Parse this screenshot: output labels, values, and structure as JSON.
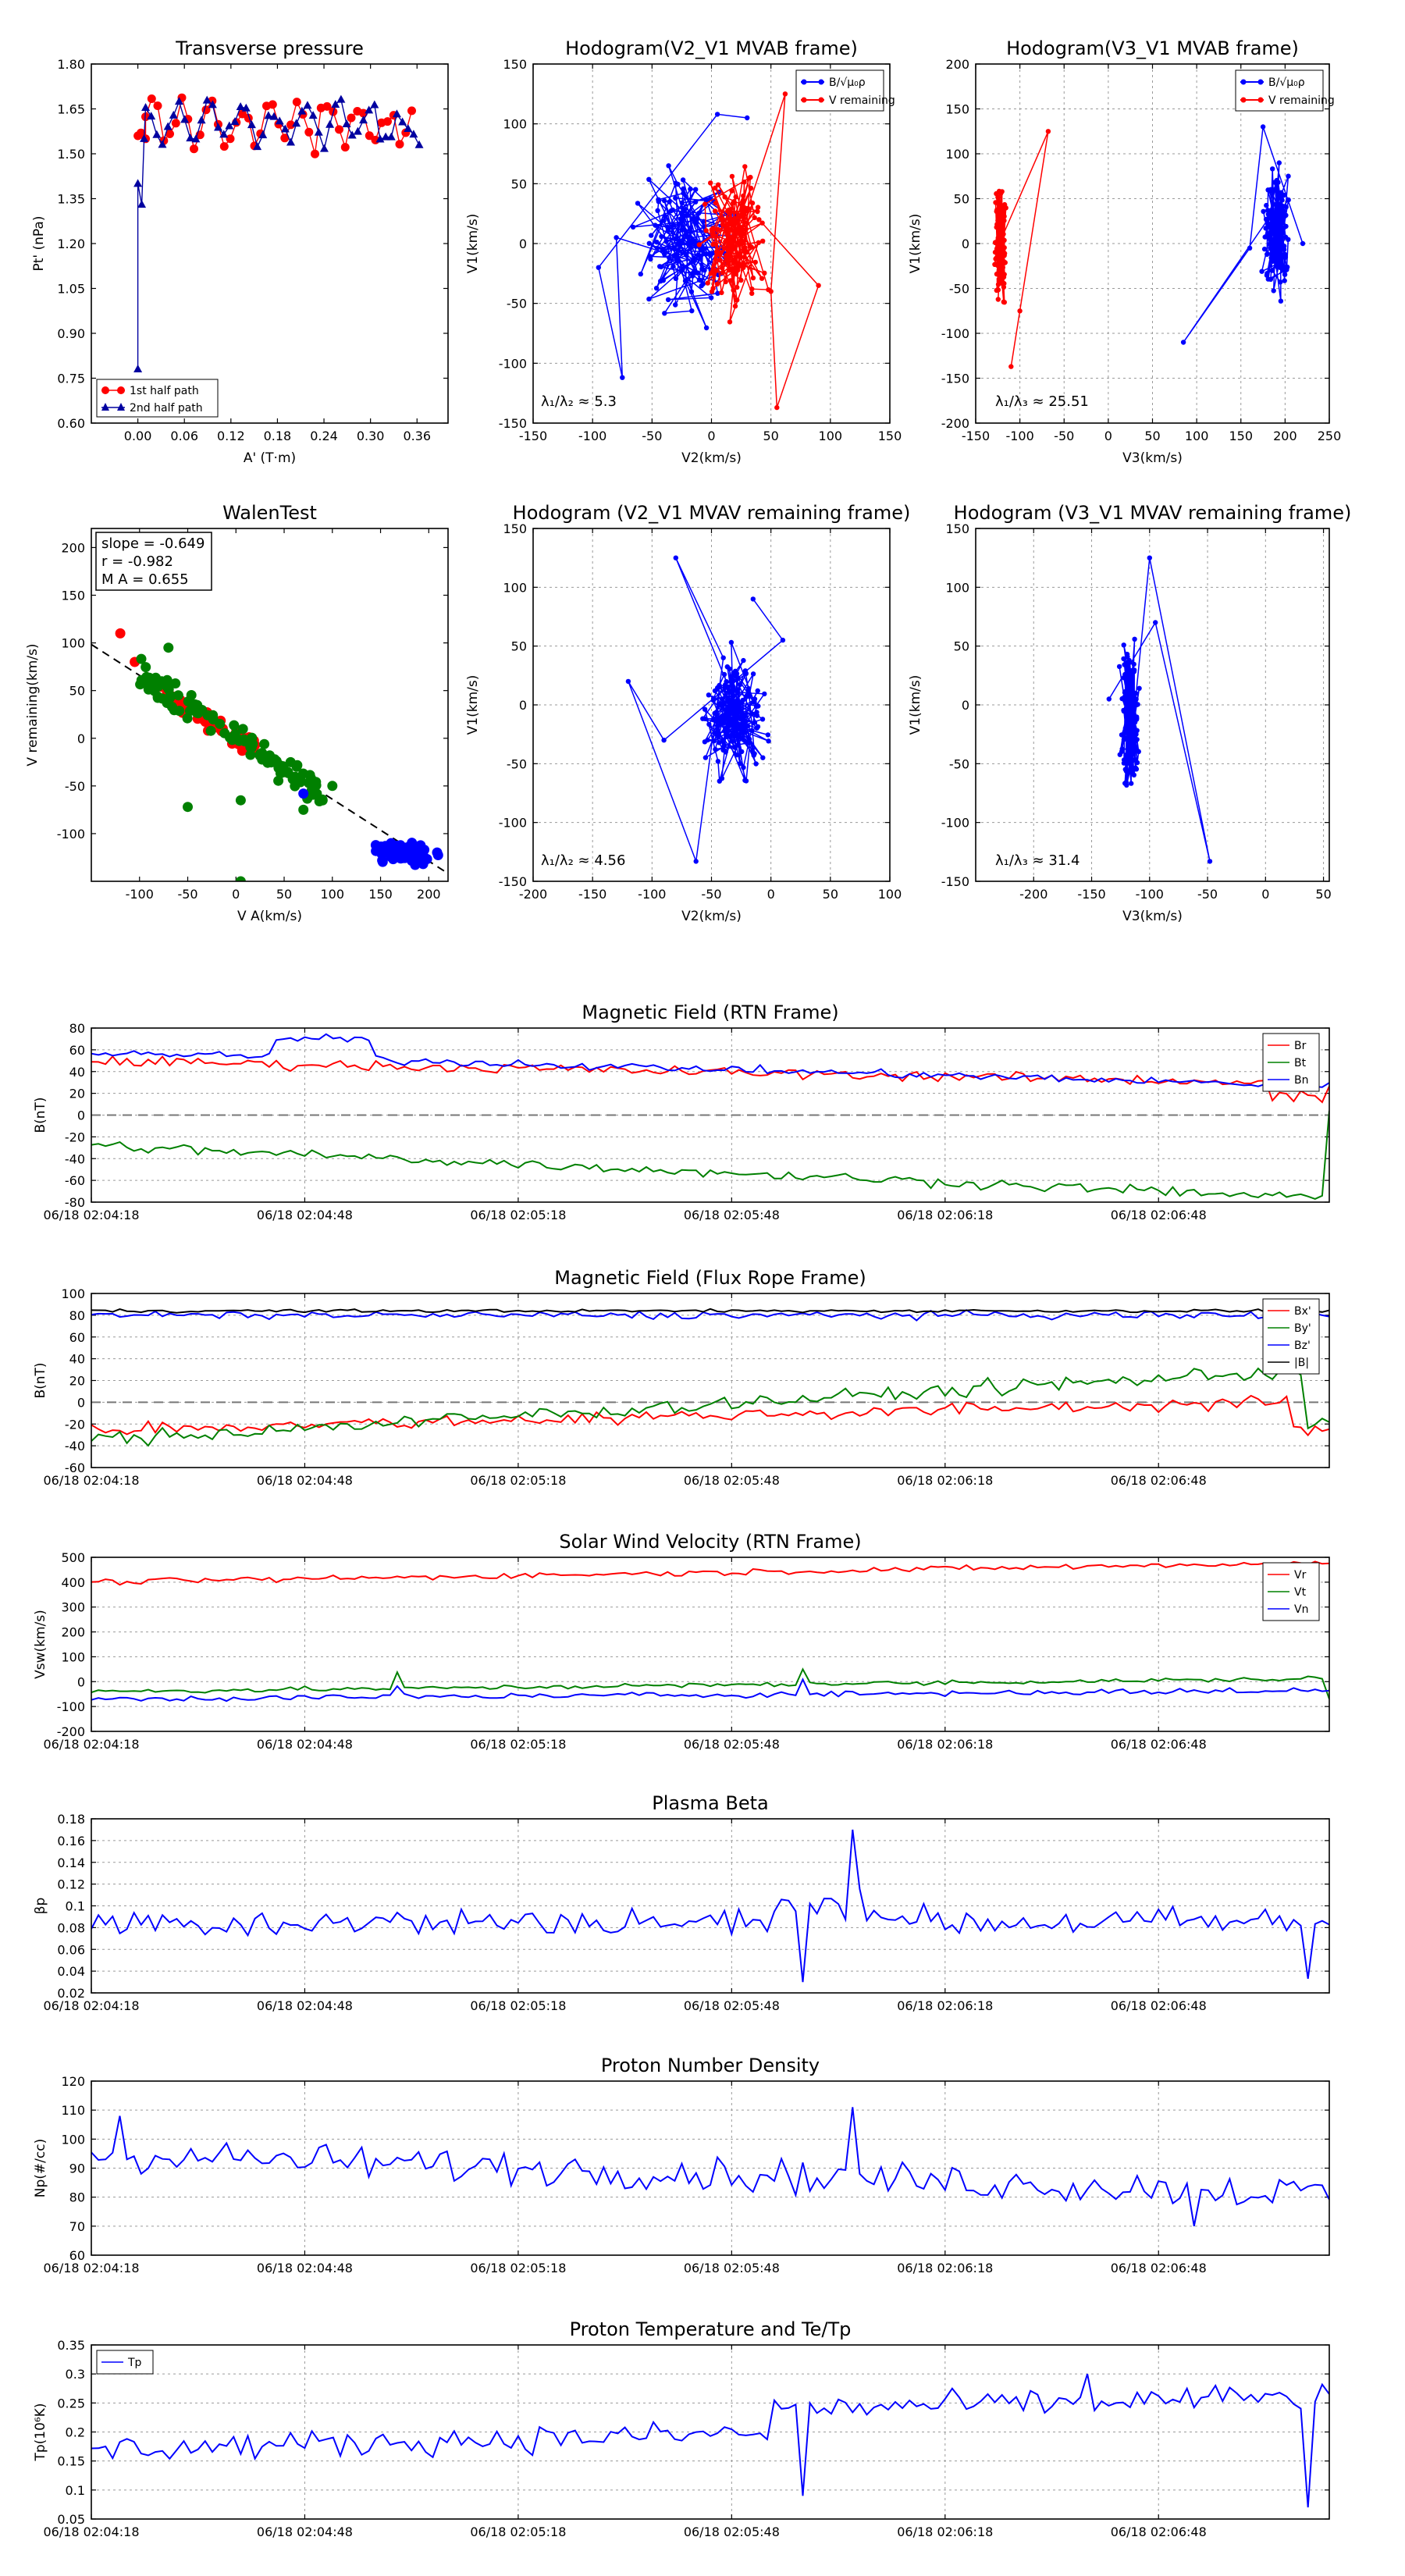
{
  "colors": {
    "red": "#ff0000",
    "blue": "#0000ff",
    "green": "#008000",
    "black": "#000000",
    "navy": "#0000a0"
  },
  "chart_data": [
    {
      "id": "c1",
      "type": "scatter",
      "title": "Transverse pressure",
      "xlabel": "A' (T·m)",
      "ylabel": "Pt' (nPa)",
      "xlim": [
        -0.06,
        0.4
      ],
      "ylim": [
        0.6,
        1.8
      ],
      "xticks": [
        0,
        0.06,
        0.12,
        0.18,
        0.24,
        0.3,
        0.36
      ],
      "xticklabels": [
        "0.00",
        "0.06",
        "0.12",
        "0.18",
        "0.24",
        "0.30",
        "0.36"
      ],
      "yticks": [
        0.6,
        0.75,
        0.9,
        1.05,
        1.2,
        1.35,
        1.5,
        1.65,
        1.8
      ],
      "yticklabels": [
        "0.60",
        "0.75",
        "0.90",
        "1.05",
        "1.20",
        "1.35",
        "1.50",
        "1.65",
        "1.80"
      ],
      "legend": [
        "1st half path",
        "2nd half path"
      ]
    },
    {
      "id": "c2",
      "type": "line",
      "title": "Hodogram(V2_V1 MVAB frame)",
      "xlabel": "V2(km/s)",
      "ylabel": "V1(km/s)",
      "xlim": [
        -150,
        150
      ],
      "ylim": [
        -150,
        150
      ],
      "xticks": [
        -150,
        -100,
        -50,
        0,
        50,
        100,
        150
      ],
      "yticks": [
        -150,
        -100,
        -50,
        0,
        50,
        100,
        150
      ],
      "legend": [
        "B/√μ₀ρ",
        "V remaining"
      ],
      "annotation": "λ₁/λ₂ ≈ 5.3"
    },
    {
      "id": "c3",
      "type": "line",
      "title": "Hodogram(V3_V1 MVAB frame)",
      "xlabel": "V3(km/s)",
      "ylabel": "V1(km/s)",
      "xlim": [
        -150,
        250
      ],
      "ylim": [
        -200,
        200
      ],
      "xticks": [
        -150,
        -100,
        -50,
        0,
        50,
        100,
        150,
        200,
        250
      ],
      "yticks": [
        -200,
        -150,
        -100,
        -50,
        0,
        50,
        100,
        150,
        200
      ],
      "legend": [
        "B/√μ₀ρ",
        "V remaining"
      ],
      "annotation": "λ₁/λ₃ ≈ 25.51"
    },
    {
      "id": "c4",
      "type": "scatter",
      "title": "WalenTest",
      "xlabel": "V A(km/s)",
      "ylabel": "V remaining(km/s)",
      "xlim": [
        -150,
        220
      ],
      "ylim": [
        -150,
        220
      ],
      "xticks": [
        -100,
        -50,
        0,
        50,
        100,
        150,
        200
      ],
      "yticks": [
        -100,
        -50,
        0,
        50,
        100,
        150,
        200
      ],
      "annotations": [
        "slope = -0.649",
        "r = -0.982",
        "M A = 0.655"
      ],
      "slope": -0.649,
      "intercept": 1
    },
    {
      "id": "c5",
      "type": "line",
      "title": "Hodogram (V2_V1 MVAV remaining frame)",
      "xlabel": "V2(km/s)",
      "ylabel": "V1(km/s)",
      "xlim": [
        -200,
        100
      ],
      "ylim": [
        -150,
        150
      ],
      "xticks": [
        -200,
        -150,
        -100,
        -50,
        0,
        50,
        100
      ],
      "yticks": [
        -150,
        -100,
        -50,
        0,
        50,
        100,
        150
      ],
      "annotation": "λ₁/λ₂ ≈ 4.56"
    },
    {
      "id": "c6",
      "type": "line",
      "title": "Hodogram (V3_V1 MVAV remaining frame)",
      "xlabel": "V3(km/s)",
      "ylabel": "V1(km/s)",
      "xlim": [
        -250,
        55
      ],
      "ylim": [
        -150,
        150
      ],
      "xticks": [
        -200,
        -150,
        -100,
        -50,
        0,
        50
      ],
      "yticks": [
        -150,
        -100,
        -50,
        0,
        50,
        100,
        150
      ],
      "annotation": "λ₁/λ₃ ≈ 31.4"
    },
    {
      "id": "t1",
      "type": "line",
      "title": "Magnetic Field (RTN Frame)",
      "ylabel": "B(nT)",
      "ylim": [
        -80,
        80
      ],
      "yticks": [
        -80,
        -60,
        -40,
        -20,
        0,
        20,
        40,
        60,
        80
      ],
      "xticklabels": [
        "06/18 02:04:18",
        "06/18 02:04:48",
        "06/18 02:05:18",
        "06/18 02:05:48",
        "06/18 02:06:18",
        "06/18 02:06:48"
      ],
      "series": [
        {
          "name": "Br",
          "color": "#ff0000",
          "base": 50
        },
        {
          "name": "Bt",
          "color": "#008000",
          "base": -50
        },
        {
          "name": "Bn",
          "color": "#0000ff",
          "base": 50
        }
      ],
      "zero_line": true
    },
    {
      "id": "t2",
      "type": "line",
      "title": "Magnetic Field (Flux Rope Frame)",
      "ylabel": "B(nT)",
      "ylim": [
        -60,
        100
      ],
      "yticks": [
        -60,
        -40,
        -20,
        0,
        20,
        40,
        60,
        80,
        100
      ],
      "xticklabels": [
        "06/18 02:04:18",
        "06/18 02:04:48",
        "06/18 02:05:18",
        "06/18 02:05:48",
        "06/18 02:06:18",
        "06/18 02:06:48"
      ],
      "series": [
        {
          "name": "Bx'",
          "color": "#ff0000"
        },
        {
          "name": "By'",
          "color": "#008000"
        },
        {
          "name": "Bz'",
          "color": "#0000ff"
        },
        {
          "name": "|B|",
          "color": "#000000"
        }
      ],
      "zero_line": true
    },
    {
      "id": "t3",
      "type": "line",
      "title": "Solar Wind Velocity (RTN Frame)",
      "ylabel": "Vsw(km/s)",
      "ylim": [
        -200,
        500
      ],
      "yticks": [
        -200,
        -100,
        0,
        100,
        200,
        300,
        400,
        500
      ],
      "xticklabels": [
        "06/18 02:04:18",
        "06/18 02:04:48",
        "06/18 02:05:18",
        "06/18 02:05:48",
        "06/18 02:06:18",
        "06/18 02:06:48"
      ],
      "series": [
        {
          "name": "Vr",
          "color": "#ff0000"
        },
        {
          "name": "Vt",
          "color": "#008000"
        },
        {
          "name": "Vn",
          "color": "#0000ff"
        }
      ]
    },
    {
      "id": "t4",
      "type": "line",
      "title": "Plasma Beta",
      "ylabel": "βp",
      "ylim": [
        0.02,
        0.18
      ],
      "yticks": [
        0.02,
        0.04,
        0.06,
        0.08,
        0.1,
        0.12,
        0.14,
        0.16,
        0.18
      ],
      "xticklabels": [
        "06/18 02:04:18",
        "06/18 02:04:48",
        "06/18 02:05:18",
        "06/18 02:05:48",
        "06/18 02:06:18",
        "06/18 02:06:48"
      ],
      "series": [
        {
          "name": "beta",
          "color": "#0000ff"
        }
      ]
    },
    {
      "id": "t5",
      "type": "line",
      "title": "Proton Number Density",
      "ylabel": "Np(#/cc)",
      "ylim": [
        60,
        120
      ],
      "yticks": [
        60,
        70,
        80,
        90,
        100,
        110,
        120
      ],
      "xticklabels": [
        "06/18 02:04:18",
        "06/18 02:04:48",
        "06/18 02:05:18",
        "06/18 02:05:48",
        "06/18 02:06:18",
        "06/18 02:06:48"
      ],
      "series": [
        {
          "name": "Np",
          "color": "#0000ff"
        }
      ]
    },
    {
      "id": "t6",
      "type": "line",
      "title": "Proton Temperature and Te/Tp",
      "ylabel": "Tp(10⁶K)",
      "ylim": [
        0.05,
        0.35
      ],
      "yticks": [
        0.05,
        0.1,
        0.15,
        0.2,
        0.25,
        0.3,
        0.35
      ],
      "xticklabels": [
        "06/18 02:04:18",
        "06/18 02:04:48",
        "06/18 02:05:18",
        "06/18 02:05:48",
        "06/18 02:06:18",
        "06/18 02:06:48"
      ],
      "series": [
        {
          "name": "Tp",
          "color": "#0000ff"
        }
      ]
    }
  ]
}
